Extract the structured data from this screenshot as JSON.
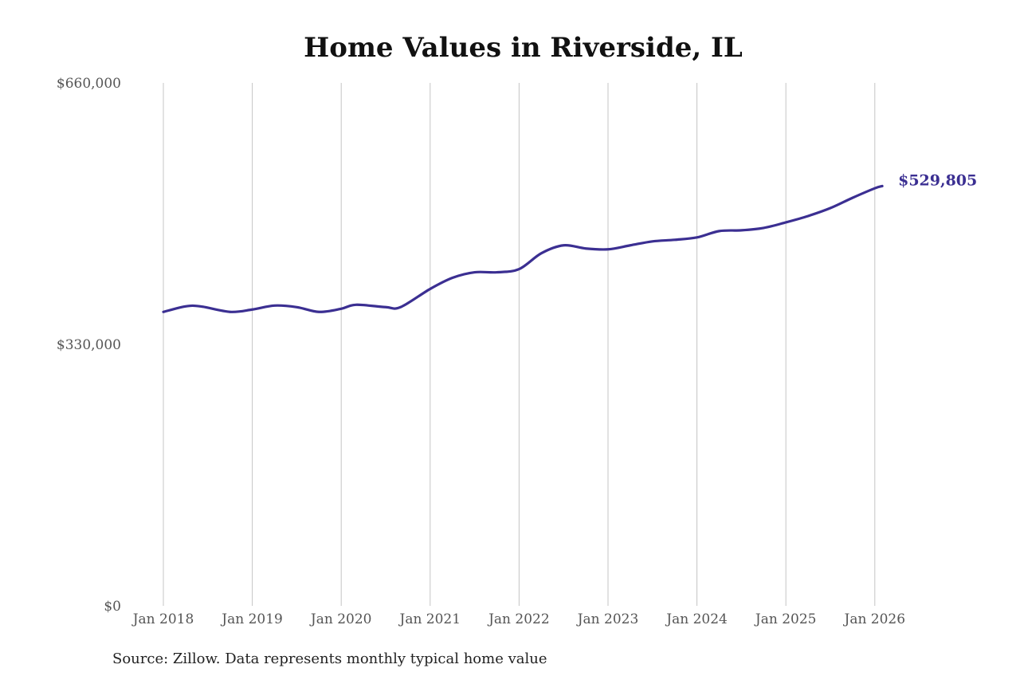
{
  "chart_data": {
    "type": "line",
    "title": "Home Values in Riverside, IL",
    "source": "Source: Zillow. Data represents monthly typical home value",
    "xlabel": "",
    "ylabel": "",
    "ylim": [
      0,
      660000
    ],
    "y_ticks": [
      {
        "value": 0,
        "label": "$0"
      },
      {
        "value": 330000,
        "label": "$330,000"
      },
      {
        "value": 660000,
        "label": "$660,000"
      }
    ],
    "x_ticks": [
      {
        "date": "2018-01",
        "label": "Jan 2018"
      },
      {
        "date": "2019-01",
        "label": "Jan 2019"
      },
      {
        "date": "2020-01",
        "label": "Jan 2020"
      },
      {
        "date": "2021-01",
        "label": "Jan 2021"
      },
      {
        "date": "2022-01",
        "label": "Jan 2022"
      },
      {
        "date": "2023-01",
        "label": "Jan 2023"
      },
      {
        "date": "2024-01",
        "label": "Jan 2024"
      },
      {
        "date": "2025-01",
        "label": "Jan 2025"
      },
      {
        "date": "2026-01",
        "label": "Jan 2026"
      }
    ],
    "grid": "vertical",
    "line_color": "#3b2f92",
    "end_label": "$529,805",
    "series": [
      {
        "x": [
          "2018-01",
          "2018-04",
          "2018-06",
          "2018-10",
          "2019-01",
          "2019-04",
          "2019-07",
          "2019-10",
          "2020-01",
          "2020-03",
          "2020-07",
          "2020-09",
          "2021-01",
          "2021-04",
          "2021-07",
          "2021-10",
          "2022-01",
          "2022-04",
          "2022-07",
          "2022-10",
          "2023-01",
          "2023-04",
          "2023-07",
          "2023-10",
          "2024-01",
          "2024-04",
          "2024-07",
          "2024-10",
          "2025-01",
          "2025-04",
          "2025-07",
          "2025-10",
          "2026-01",
          "2026-02"
        ],
        "values": [
          371000,
          378000,
          378000,
          371000,
          374000,
          379000,
          377000,
          371000,
          375000,
          380000,
          377000,
          377000,
          400000,
          414000,
          421000,
          421000,
          425000,
          445000,
          455000,
          451000,
          450000,
          455000,
          460000,
          462000,
          465000,
          473000,
          474000,
          477000,
          484000,
          492000,
          502000,
          515000,
          527000,
          529805
        ]
      }
    ]
  }
}
